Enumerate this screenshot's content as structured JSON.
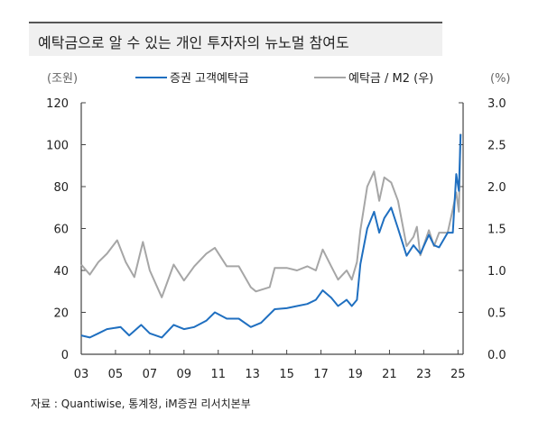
{
  "title": "예탁금으로 알 수 있는 개인 투자자의 뉴노멀 참여도",
  "source": "자료 : Quantiwise, 통계청, iM증권 리서치본부",
  "chart_data": {
    "type": "line",
    "left_unit": "(조원)",
    "right_unit": "(%)",
    "xlabels": [
      "03",
      "05",
      "07",
      "09",
      "11",
      "13",
      "15",
      "17",
      "19",
      "21",
      "23",
      "25"
    ],
    "xlim": [
      2003,
      2025.3
    ],
    "ylim_left": [
      0,
      120
    ],
    "yticks_left": [
      "0",
      "20",
      "40",
      "60",
      "80",
      "100",
      "120"
    ],
    "ylim_right": [
      0,
      3.0
    ],
    "yticks_right": [
      "0.0",
      "0.5",
      "1.0",
      "1.5",
      "2.0",
      "2.5",
      "3.0"
    ],
    "grid": false,
    "legend": "top",
    "series": [
      {
        "name": "증권 고객예탁금",
        "axis": "left",
        "color": "#1f6fc0",
        "x": [
          2003,
          2003.5,
          2004,
          2004.5,
          2005.3,
          2005.8,
          2006.5,
          2007,
          2007.7,
          2008.4,
          2009,
          2009.6,
          2010.3,
          2010.8,
          2011.5,
          2012.2,
          2012.9,
          2013.5,
          2014.3,
          2015,
          2015.6,
          2016.2,
          2016.7,
          2017.1,
          2017.6,
          2018,
          2018.5,
          2018.8,
          2019.1,
          2019.3,
          2019.7,
          2020.1,
          2020.4,
          2020.7,
          2021.1,
          2021.5,
          2022,
          2022.4,
          2022.8,
          2023.3,
          2023.6,
          2023.9,
          2024.4,
          2024.7,
          2024.9,
          2025.05,
          2025.15
        ],
        "y": [
          9,
          8,
          10,
          12,
          13,
          9,
          14,
          10,
          8,
          14,
          12,
          13,
          16,
          20,
          17,
          17,
          13,
          15,
          21.5,
          22,
          23,
          24,
          26,
          30.5,
          27,
          23,
          26,
          23,
          26,
          43,
          60,
          68,
          58,
          65,
          70,
          60,
          47,
          52,
          48,
          57,
          52,
          51,
          58,
          58,
          86,
          78,
          105
        ]
      },
      {
        "name": "예탁금 / M2 (우)",
        "axis": "right",
        "color": "#a6a6a6",
        "x": [
          2003,
          2003.5,
          2004,
          2004.5,
          2005.1,
          2005.6,
          2006.1,
          2006.6,
          2007,
          2007.7,
          2008.4,
          2009,
          2009.6,
          2010.3,
          2010.8,
          2011.5,
          2012.2,
          2012.9,
          2013.2,
          2014,
          2014.3,
          2015,
          2015.6,
          2016.2,
          2016.7,
          2017.1,
          2017.6,
          2018,
          2018.5,
          2018.8,
          2019.1,
          2019.3,
          2019.7,
          2020.1,
          2020.4,
          2020.7,
          2021.1,
          2021.5,
          2022,
          2022.4,
          2022.6,
          2022.8,
          2023.3,
          2023.6,
          2023.9,
          2024.4,
          2024.7,
          2024.9,
          2025.05,
          2025.15
        ],
        "y": [
          1.07,
          0.95,
          1.1,
          1.2,
          1.36,
          1.1,
          0.92,
          1.34,
          1.0,
          0.68,
          1.07,
          0.88,
          1.05,
          1.2,
          1.27,
          1.05,
          1.05,
          0.8,
          0.75,
          0.8,
          1.03,
          1.03,
          1.0,
          1.05,
          1.0,
          1.25,
          1.05,
          0.89,
          1.0,
          0.89,
          1.1,
          1.48,
          2.0,
          2.18,
          1.83,
          2.11,
          2.05,
          1.83,
          1.29,
          1.4,
          1.52,
          1.18,
          1.48,
          1.29,
          1.45,
          1.45,
          1.73,
          1.93,
          1.7,
          2.63
        ]
      }
    ]
  }
}
